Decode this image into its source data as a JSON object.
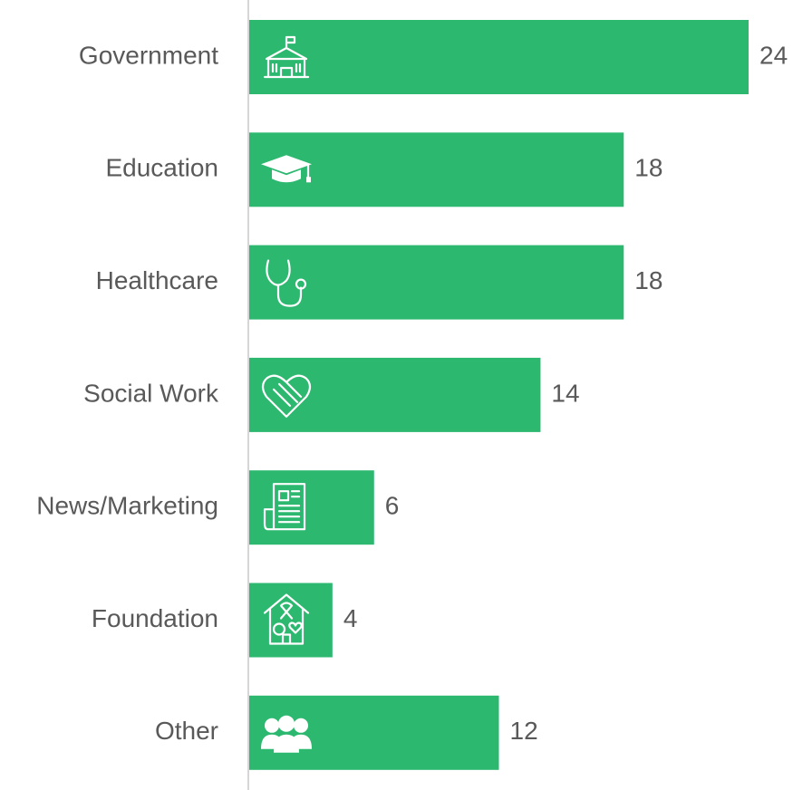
{
  "chart_data": {
    "type": "bar",
    "orientation": "horizontal",
    "categories": [
      "Government",
      "Education",
      "Healthcare",
      "Social Work",
      "News/Marketing",
      "Foundation",
      "Other"
    ],
    "values": [
      24,
      18,
      18,
      14,
      6,
      4,
      12
    ],
    "color": "#2db870"
  }
}
